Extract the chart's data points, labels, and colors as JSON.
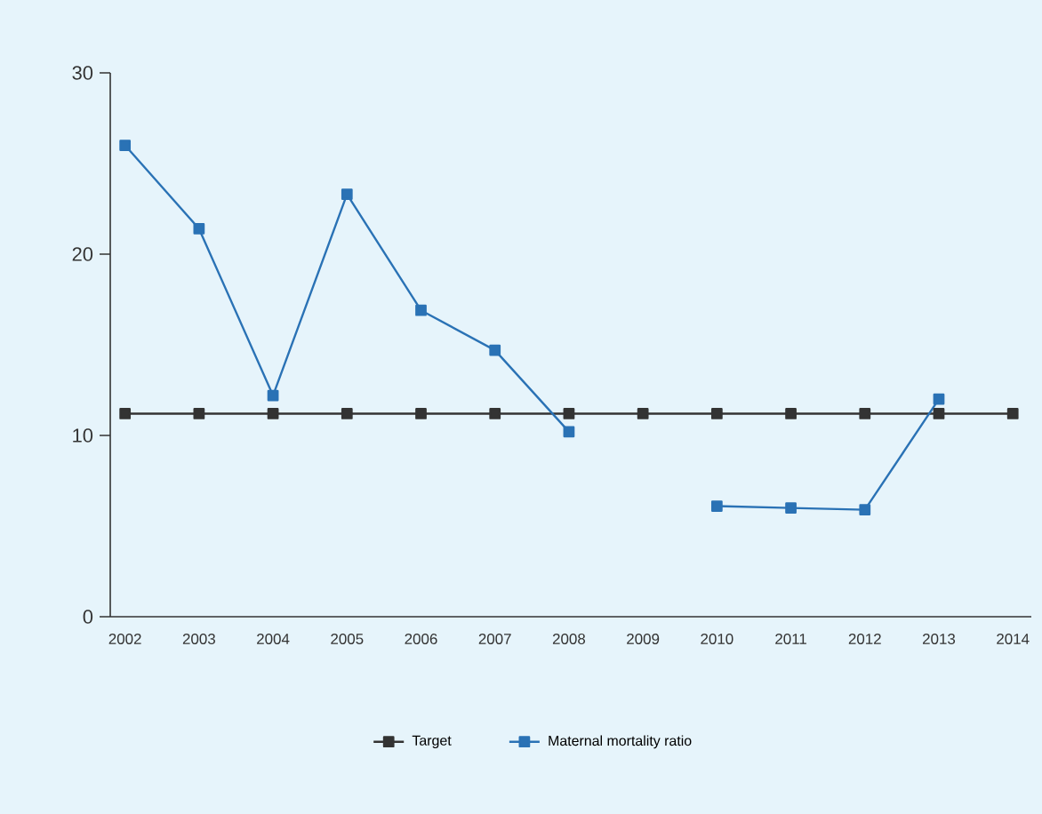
{
  "chart_data": {
    "type": "line",
    "categories": [
      "2002",
      "2003",
      "2004",
      "2005",
      "2006",
      "2007",
      "2008",
      "2009",
      "2010",
      "2011",
      "2012",
      "2013",
      "2014"
    ],
    "series": [
      {
        "name": "Target",
        "color": "#333333",
        "values": [
          11.2,
          11.2,
          11.2,
          11.2,
          11.2,
          11.2,
          11.2,
          11.2,
          11.2,
          11.2,
          11.2,
          11.2,
          11.2
        ]
      },
      {
        "name": "Maternal mortality ratio",
        "color": "#2a72b5",
        "values": [
          26.0,
          21.4,
          12.2,
          23.3,
          16.9,
          14.7,
          10.2,
          null,
          6.1,
          6.0,
          5.9,
          12.0,
          null
        ]
      }
    ],
    "ylim": [
      0,
      30
    ],
    "yticks": [
      0,
      10,
      20,
      30
    ],
    "grid": false,
    "legend": "bottom",
    "marker": "square",
    "line_style": "solid"
  }
}
